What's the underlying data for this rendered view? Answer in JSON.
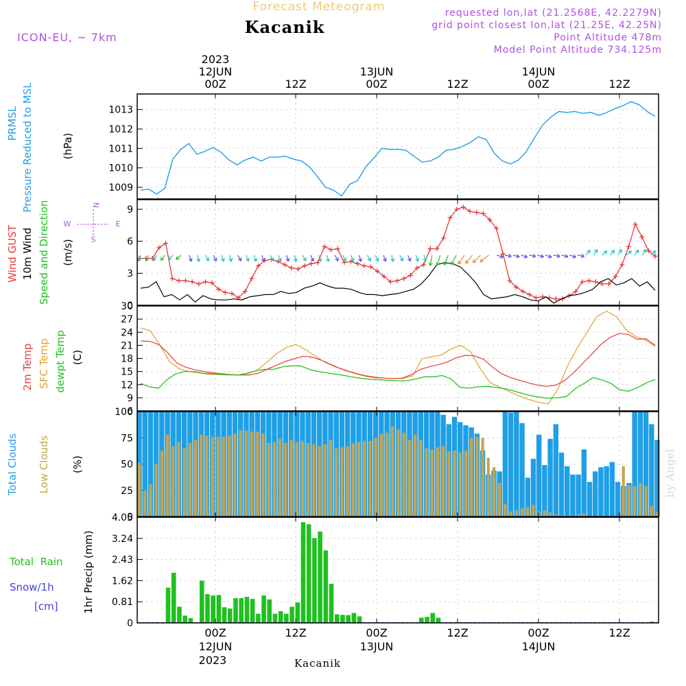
{
  "header": {
    "forecast_title": "Forecast Meteogram",
    "location": "Kacanik",
    "model": "ICON-EU, ~ 7km",
    "requested": "requested lon,lat (21.2568E, 42.2279N)",
    "grid_point": "grid point closest lon,lat (21.25E, 42.25N)",
    "point_altitude": "Point Altitude 478m",
    "model_altitude": "Model Point Altitude 734.125m",
    "credit": "by Angel",
    "footer_location": "Kacanik"
  },
  "time_axis": {
    "top_year": "2023",
    "top_labels": [
      {
        "line1": "12JUN",
        "line2": "00Z"
      },
      {
        "line1": "",
        "line2": "12Z"
      },
      {
        "line1": "13JUN",
        "line2": "00Z"
      },
      {
        "line1": "",
        "line2": "12Z"
      },
      {
        "line1": "14JUN",
        "line2": "00Z"
      },
      {
        "line1": "",
        "line2": "12Z"
      }
    ],
    "bottom_labels": [
      {
        "line1": "00Z",
        "line2": "12JUN"
      },
      {
        "line1": "12Z",
        "line2": ""
      },
      {
        "line1": "00Z",
        "line2": "13JUN"
      },
      {
        "line1": "12Z",
        "line2": ""
      },
      {
        "line1": "00Z",
        "line2": "14JUN"
      },
      {
        "line1": "12Z",
        "line2": ""
      }
    ],
    "bottom_year": "2023"
  },
  "colors": {
    "pressure": "#1e9fe6",
    "gust": "#e83838",
    "wind": "#000000",
    "temp2m": "#e83838",
    "sfc": "#e0a030",
    "dewpt": "#20c020",
    "total_clouds": "#1e9fe6",
    "low_clouds": "#c8a44c",
    "rain": "#20c020",
    "snow": "#4040e0",
    "purple": "#b050e0",
    "title_orange": "#f0c878"
  },
  "panel_labels": {
    "pressure": {
      "line1": "PRMSL",
      "line2": "Pressure Reduced to MSL",
      "unit": "(hPa)"
    },
    "wind": {
      "gust": "Wind GUST",
      "wind": "10m Wind",
      "dir": "Speed and Direction",
      "unit": "(m/s)",
      "compass_n": "N",
      "compass_s": "S",
      "compass_w": "W",
      "compass_e": "E"
    },
    "temp": {
      "t2m": "2m Temp",
      "sfc": "SFC Temp",
      "dew": "dewpt Temp",
      "unit": "(C)"
    },
    "clouds": {
      "total": "Total Clouds",
      "low": "Low Clouds",
      "unit": "(%)"
    },
    "precip": {
      "rain": "Total  Rain",
      "snow": "Snow/1h",
      "snow_unit": "[cm]",
      "axis": "1hr Precip (mm)"
    }
  },
  "chart_data": [
    {
      "type": "line",
      "title": "PRMSL Pressure Reduced to MSL",
      "ylabel": "hPa",
      "ylim": [
        1008.4,
        1013.8
      ],
      "yticks": [
        1009,
        1010,
        1011,
        1012,
        1013
      ],
      "x_hours": "hours since 12JUN 00Z, -10 to 53",
      "series": [
        {
          "name": "PRMSL",
          "values": [
            1008.85,
            1008.9,
            1008.65,
            1008.95,
            1010.45,
            1010.95,
            1011.25,
            1010.7,
            1010.85,
            1011.05,
            1010.8,
            1010.4,
            1010.15,
            1010.4,
            1010.55,
            1010.35,
            1010.55,
            1010.55,
            1010.6,
            1010.45,
            1010.35,
            1010.05,
            1009.55,
            1009.0,
            1008.85,
            1008.55,
            1009.15,
            1009.35,
            1010.05,
            1010.5,
            1011.0,
            1010.95,
            1010.95,
            1010.9,
            1010.6,
            1010.3,
            1010.35,
            1010.55,
            1010.9,
            1010.95,
            1011.1,
            1011.3,
            1011.6,
            1011.45,
            1010.75,
            1010.35,
            1010.2,
            1010.4,
            1010.85,
            1011.55,
            1012.2,
            1012.6,
            1012.9,
            1012.85,
            1012.9,
            1012.8,
            1012.85,
            1012.7,
            1012.85,
            1013.05,
            1013.2,
            1013.4,
            1013.25,
            1012.9,
            1012.65
          ]
        }
      ]
    },
    {
      "type": "line",
      "title": "Wind GUST / 10m Wind Speed and Direction",
      "ylabel": "m/s",
      "ylim": [
        0,
        9.9
      ],
      "yticks": [
        0,
        3,
        6,
        9
      ],
      "series": [
        {
          "name": "Wind GUST",
          "values": [
            4.4,
            4.4,
            4.4,
            5.4,
            5.8,
            2.5,
            2.3,
            2.3,
            2.2,
            2.0,
            2.2,
            2.1,
            1.5,
            1.2,
            1.1,
            0.7,
            1.3,
            2.5,
            3.7,
            4.2,
            4.3,
            4.1,
            3.8,
            3.5,
            3.4,
            3.7,
            3.9,
            4.0,
            5.5,
            5.2,
            5.3,
            4.0,
            4.1,
            3.9,
            3.7,
            3.6,
            3.2,
            2.7,
            2.2,
            2.3,
            2.5,
            2.8,
            3.5,
            3.8,
            5.3,
            5.3,
            6.3,
            8.2,
            9.0,
            9.2,
            8.8,
            8.7,
            8.6,
            8.0,
            7.2,
            4.8,
            2.3,
            1.7,
            1.3,
            1.0,
            0.7,
            0.8,
            0.7,
            0.6,
            0.6,
            0.9,
            1.3,
            2.2,
            2.3,
            2.2,
            2.0,
            2.0,
            2.7,
            3.8,
            5.5,
            7.6,
            6.4,
            5.1,
            4.6
          ]
        },
        {
          "name": "10m Wind",
          "values": [
            1.6,
            1.7,
            2.2,
            0.8,
            1.0,
            0.5,
            1.0,
            0.3,
            0.9,
            0.6,
            0.5,
            0.5,
            0.6,
            0.5,
            0.8,
            0.9,
            1.0,
            1.0,
            1.3,
            1.1,
            1.2,
            1.6,
            1.8,
            2.1,
            1.8,
            1.6,
            1.6,
            1.5,
            1.2,
            1.0,
            1.0,
            0.9,
            1.0,
            1.1,
            1.3,
            1.5,
            2.0,
            2.8,
            3.8,
            4.0,
            3.9,
            3.6,
            2.9,
            2.1,
            1.0,
            0.6,
            0.7,
            0.8,
            1.0,
            0.8,
            0.5,
            0.4,
            0.8,
            0.2,
            0.6,
            0.9,
            1.0,
            1.2,
            1.5,
            2.2,
            2.5,
            1.9,
            2.1,
            2.5,
            1.8,
            2.2,
            1.4
          ]
        }
      ]
    },
    {
      "type": "line",
      "title": "2m Temp / SFC Temp / dewpt Temp",
      "ylabel": "C",
      "ylim": [
        6,
        30
      ],
      "yticks": [
        6,
        9,
        12,
        15,
        18,
        21,
        24,
        27,
        30
      ],
      "series": [
        {
          "name": "2m Temp",
          "values": [
            22.0,
            21.9,
            21.2,
            19.3,
            17.0,
            16.0,
            15.4,
            15.0,
            14.7,
            14.5,
            14.3,
            14.2,
            14.2,
            14.6,
            15.5,
            16.4,
            17.3,
            17.9,
            18.5,
            18.3,
            17.6,
            16.7,
            15.8,
            15.1,
            14.5,
            14.0,
            13.7,
            13.5,
            13.4,
            13.5,
            14.3,
            15.5,
            16.1,
            16.6,
            17.2,
            18.2,
            18.7,
            18.6,
            17.8,
            16.0,
            14.5,
            13.6,
            13.0,
            12.4,
            11.9,
            11.6,
            11.9,
            13.0,
            14.8,
            16.9,
            19.0,
            21.2,
            22.8,
            23.7,
            23.5,
            22.4,
            22.5,
            21.0
          ]
        },
        {
          "name": "SFC Temp",
          "values": [
            25.0,
            24.3,
            21.0,
            17.2,
            15.6,
            15.0,
            14.7,
            14.4,
            14.3,
            14.2,
            14.2,
            14.5,
            15.3,
            17.1,
            19.1,
            20.5,
            21.2,
            20.0,
            18.5,
            17.1,
            16.1,
            15.3,
            14.6,
            14.0,
            13.6,
            13.5,
            13.4,
            13.4,
            14.0,
            17.9,
            18.4,
            18.8,
            20.2,
            21.0,
            19.5,
            15.6,
            12.5,
            11.4,
            10.4,
            9.4,
            8.6,
            8.0,
            7.6,
            11.1,
            16.4,
            20.5,
            24.0,
            27.6,
            28.8,
            27.6,
            24.6,
            23.0,
            22.2,
            20.8
          ]
        },
        {
          "name": "dewpt Temp",
          "values": [
            12.3,
            11.5,
            11.2,
            13.2,
            14.5,
            15.0,
            15.0,
            14.6,
            14.5,
            14.4,
            14.3,
            14.2,
            14.6,
            15.2,
            15.5,
            15.5,
            16.1,
            16.3,
            16.3,
            15.5,
            15.0,
            14.7,
            14.4,
            14.1,
            13.7,
            13.4,
            13.2,
            13.1,
            13.0,
            12.9,
            12.9,
            13.3,
            13.8,
            13.8,
            14.1,
            13.3,
            11.4,
            11.2,
            11.5,
            11.6,
            11.4,
            11.1,
            10.6,
            10.0,
            9.5,
            9.1,
            8.9,
            9.0,
            9.3,
            11.1,
            12.3,
            13.6,
            13.1,
            12.3,
            10.8,
            10.5,
            11.3,
            12.4,
            13.2
          ]
        }
      ]
    },
    {
      "type": "bar",
      "title": "Total Clouds / Low Clouds",
      "ylabel": "%",
      "ylim": [
        0,
        100
      ],
      "yticks": [
        0,
        25,
        50,
        75,
        100
      ],
      "series": [
        {
          "name": "Total Clouds",
          "values": [
            100,
            100,
            100,
            100,
            100,
            100,
            100,
            100,
            100,
            100,
            100,
            100,
            100,
            100,
            100,
            100,
            100,
            100,
            100,
            100,
            100,
            100,
            100,
            100,
            100,
            100,
            100,
            100,
            100,
            100,
            100,
            100,
            100,
            100,
            100,
            100,
            100,
            100,
            100,
            100,
            100,
            100,
            100,
            100,
            100,
            100,
            100,
            100,
            100,
            100,
            100,
            100,
            100,
            100,
            97,
            88,
            95,
            90,
            87,
            85,
            79,
            63,
            40,
            44,
            43,
            100,
            99,
            100,
            89,
            37,
            55,
            78,
            49,
            74,
            88,
            61,
            48,
            40,
            40,
            64,
            33,
            43,
            47,
            48,
            52,
            33,
            29,
            32,
            100,
            100,
            100,
            88,
            73
          ]
        },
        {
          "name": "Low Clouds",
          "values": [
            51,
            25,
            31,
            50,
            63,
            78,
            67,
            71,
            65,
            70,
            73,
            78,
            77,
            76,
            76,
            76,
            77,
            79,
            82,
            82,
            81,
            81,
            79,
            70,
            71,
            74,
            70,
            73,
            71,
            72,
            70,
            69,
            67,
            69,
            73,
            65,
            66,
            67,
            70,
            71,
            72,
            72,
            75,
            79,
            80,
            86,
            83,
            80,
            73,
            78,
            73,
            65,
            64,
            66,
            67,
            62,
            63,
            61,
            63,
            75,
            76,
            75,
            56,
            47,
            32,
            12,
            5,
            6,
            8,
            9,
            11,
            5,
            6,
            4,
            2,
            1,
            1,
            1,
            2,
            3,
            0,
            0,
            0,
            0,
            0,
            0,
            48,
            30,
            29,
            32,
            29,
            10,
            4
          ]
        }
      ]
    },
    {
      "type": "bar",
      "title": "1hr Precip",
      "ylabel": "mm",
      "ylim": [
        0,
        4.05
      ],
      "yticks": [
        0,
        0.81,
        1.62,
        2.43,
        3.24,
        4.05
      ],
      "series": [
        {
          "name": "Total Rain",
          "values": [
            0,
            0,
            0,
            0,
            0,
            1.35,
            1.92,
            0.62,
            0.28,
            0.18,
            0.0,
            1.62,
            1.1,
            1.05,
            1.07,
            0.6,
            0.55,
            0.95,
            0.95,
            1.0,
            0.92,
            0.35,
            1.05,
            0.9,
            0.35,
            0.45,
            0.35,
            0.62,
            0.78,
            3.86,
            3.78,
            3.25,
            3.5,
            2.78,
            1.5,
            0.33,
            0.31,
            0.3,
            0.38,
            0.25,
            0,
            0,
            0,
            0,
            0,
            0,
            0,
            0,
            0,
            0,
            0.2,
            0.23,
            0.38,
            0.2,
            0,
            0,
            0,
            0,
            0,
            0,
            0,
            0,
            0,
            0,
            0,
            0,
            0,
            0,
            0,
            0,
            0,
            0,
            0,
            0,
            0,
            0,
            0,
            0,
            0,
            0,
            0,
            0,
            0,
            0,
            0,
            0,
            0,
            0,
            0,
            0,
            0,
            0.05,
            0
          ]
        },
        {
          "name": "Snow/1h",
          "values": [
            0,
            0,
            0,
            0,
            0,
            0,
            0,
            0,
            0,
            0,
            0,
            0,
            0,
            0,
            0,
            0,
            0,
            0,
            0,
            0,
            0,
            0,
            0,
            0,
            0,
            0,
            0,
            0,
            0,
            0,
            0,
            0,
            0,
            0,
            0,
            0,
            0,
            0,
            0,
            0,
            0,
            0,
            0,
            0,
            0,
            0,
            0,
            0,
            0,
            0,
            0,
            0,
            0,
            0,
            0,
            0,
            0,
            0,
            0,
            0,
            0,
            0,
            0,
            0,
            0,
            0,
            0,
            0,
            0,
            0,
            0,
            0,
            0,
            0,
            0,
            0,
            0,
            0,
            0,
            0,
            0,
            0,
            0,
            0,
            0,
            0,
            0,
            0,
            0,
            0,
            0,
            0,
            0
          ]
        }
      ]
    }
  ]
}
